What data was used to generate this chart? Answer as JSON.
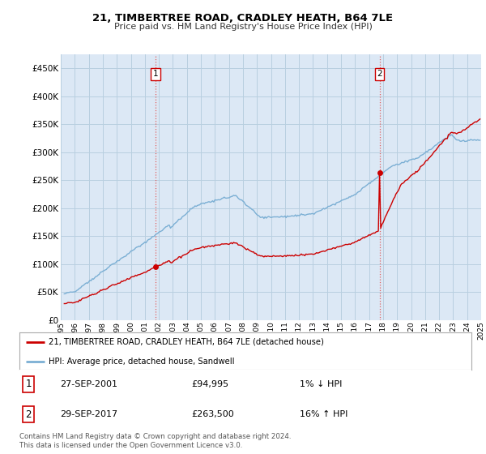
{
  "title": "21, TIMBERTREE ROAD, CRADLEY HEATH, B64 7LE",
  "subtitle": "Price paid vs. HM Land Registry's House Price Index (HPI)",
  "legend_line1": "21, TIMBERTREE ROAD, CRADLEY HEATH, B64 7LE (detached house)",
  "legend_line2": "HPI: Average price, detached house, Sandwell",
  "sale1_date": "27-SEP-2001",
  "sale1_price": 94995,
  "sale1_label": "1% ↓ HPI",
  "sale2_date": "29-SEP-2017",
  "sale2_price": 263500,
  "sale2_label": "16% ↑ HPI",
  "footnote": "Contains HM Land Registry data © Crown copyright and database right 2024.\nThis data is licensed under the Open Government Licence v3.0.",
  "hpi_color": "#7bafd4",
  "price_color": "#cc0000",
  "vline_color": "#e06060",
  "plot_bg_color": "#dce8f5",
  "background_color": "#ffffff",
  "grid_color": "#b8cfe0",
  "ylim": [
    0,
    475000
  ],
  "yticks": [
    0,
    50000,
    100000,
    150000,
    200000,
    250000,
    300000,
    350000,
    400000,
    450000
  ],
  "xlim_start": 1995.25,
  "xlim_end": 2025.0
}
